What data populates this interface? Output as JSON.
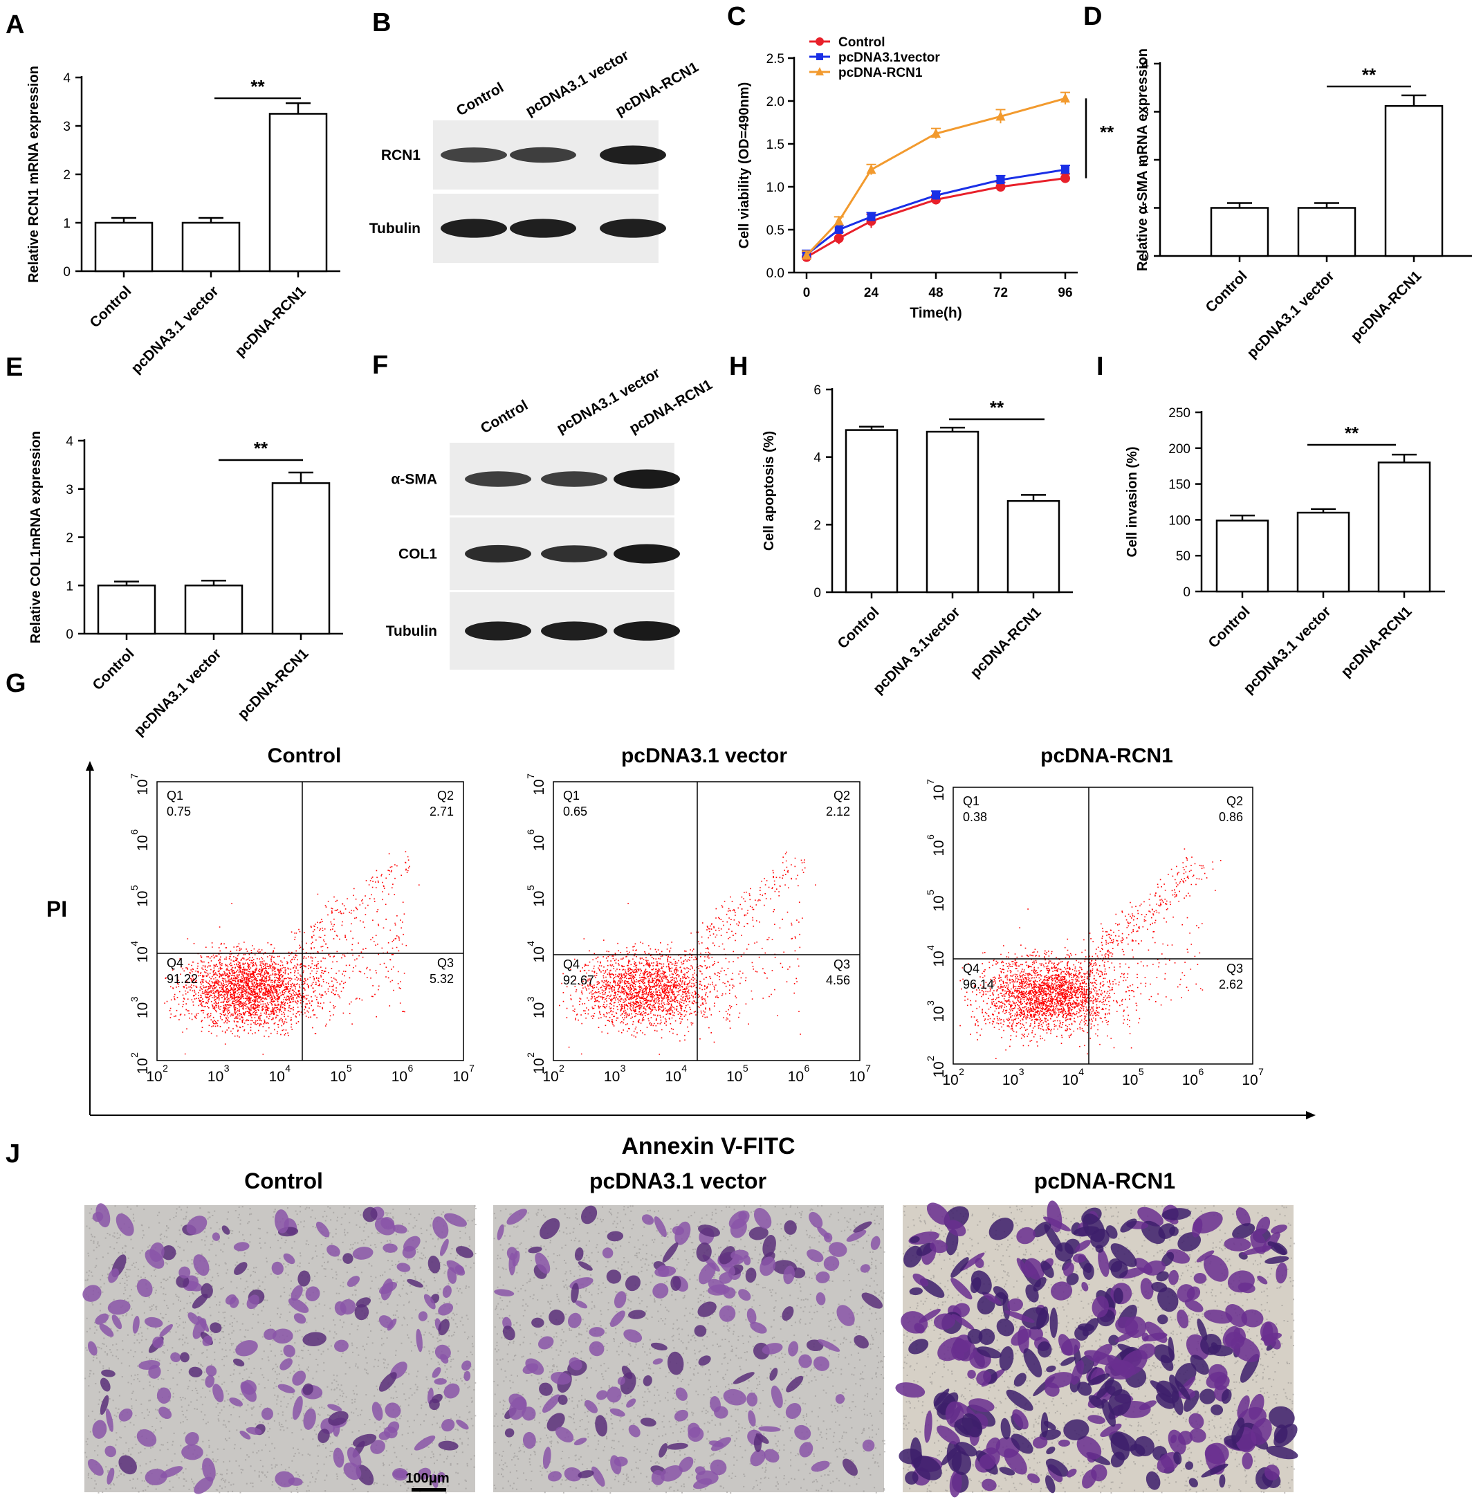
{
  "panel_labels": {
    "A": "A",
    "B": "B",
    "C": "C",
    "D": "D",
    "E": "E",
    "F": "F",
    "G": "G",
    "H": "H",
    "I": "I",
    "J": "J"
  },
  "colors": {
    "control": "#e8202a",
    "vector": "#1a2fe6",
    "rcn1": "#f29a2e",
    "dots": "#ff0000",
    "stain": "#7a3c9c",
    "background_field": "#c9c7c4"
  },
  "groups": [
    "Control",
    "pcDNA3.1 vector",
    "pcDNA-RCN1"
  ],
  "chart_data": [
    {
      "id": "A",
      "type": "bar",
      "categories": [
        "Control",
        "pcDNA3.1 vector",
        "pcDNA-RCN1"
      ],
      "values": [
        1.0,
        1.0,
        3.25
      ],
      "errors": [
        0.1,
        0.1,
        0.22
      ],
      "ylabel": "Relative RCN1 mRNA expression",
      "ylim": [
        0,
        4
      ],
      "yticks": [
        "0",
        "1",
        "2",
        "3",
        "4"
      ],
      "significance": "**"
    },
    {
      "id": "C",
      "type": "line",
      "x": [
        0,
        12,
        24,
        48,
        72,
        96
      ],
      "xticks": [
        "0",
        "24",
        "48",
        "72",
        "96"
      ],
      "xlabel": "Time(h)",
      "ylabel": "Cell viability (OD=490nm)",
      "ylim": [
        0,
        2.5
      ],
      "yticks": [
        "0.0",
        "0.5",
        "1.0",
        "1.5",
        "2.0",
        "2.5"
      ],
      "legend_position": "top-left",
      "significance": "**",
      "series": [
        {
          "name": "Control",
          "values": [
            0.18,
            0.4,
            0.6,
            0.85,
            1.0,
            1.1
          ],
          "errors": [
            0.05,
            0.07,
            0.08,
            0.05,
            0.05,
            0.05
          ]
        },
        {
          "name": "pcDNA3.1vector",
          "values": [
            0.21,
            0.5,
            0.65,
            0.9,
            1.08,
            1.2
          ],
          "errors": [
            0.05,
            0.05,
            0.05,
            0.05,
            0.05,
            0.05
          ]
        },
        {
          "name": "pcDNA-RCN1",
          "values": [
            0.2,
            0.6,
            1.2,
            1.62,
            1.82,
            2.03
          ],
          "errors": [
            0.05,
            0.05,
            0.06,
            0.06,
            0.08,
            0.07
          ]
        }
      ]
    },
    {
      "id": "D",
      "type": "bar",
      "categories": [
        "Control",
        "pcDNA3.1 vector",
        "pcDNA-RCN1"
      ],
      "values": [
        1.0,
        1.0,
        3.12
      ],
      "errors": [
        0.1,
        0.1,
        0.22
      ],
      "ylabel": "Relative α-SMA mRNA expression",
      "ylim": [
        0,
        4
      ],
      "yticks": [
        "0",
        "1",
        "2",
        "3",
        "4"
      ],
      "significance": "**"
    },
    {
      "id": "E",
      "type": "bar",
      "categories": [
        "Control",
        "pcDNA3.1 vector",
        "pcDNA-RCN1"
      ],
      "values": [
        1.0,
        1.0,
        3.12
      ],
      "errors": [
        0.08,
        0.1,
        0.22
      ],
      "ylabel": "Relative COL1mRNA expression",
      "ylim": [
        0,
        4
      ],
      "yticks": [
        "0",
        "1",
        "2",
        "3",
        "4"
      ],
      "significance": "**"
    },
    {
      "id": "H",
      "type": "bar",
      "categories": [
        "Control",
        "pcDNA 3.1vector",
        "pcDNA-RCN1"
      ],
      "values": [
        4.8,
        4.75,
        2.7
      ],
      "errors": [
        0.1,
        0.12,
        0.18
      ],
      "ylabel": "Cell apoptosis (%)",
      "ylim": [
        0,
        6
      ],
      "yticks": [
        "0",
        "2",
        "4",
        "6"
      ],
      "significance": "**"
    },
    {
      "id": "I",
      "type": "bar",
      "categories": [
        "Control",
        "pcDNA3.1 vector",
        "pcDNA-RCN1"
      ],
      "values": [
        99,
        110,
        180
      ],
      "errors": [
        7,
        5,
        11
      ],
      "ylabel": "Cell invasion (%)",
      "ylim": [
        0,
        250
      ],
      "yticks": [
        "0",
        "50",
        "100",
        "150",
        "200",
        "250"
      ],
      "significance": "**"
    },
    {
      "id": "G",
      "type": "scatter",
      "xlabel": "Annexin V-FITC",
      "ylabel": "PI",
      "xticks": [
        "10",
        "10",
        "10",
        "10",
        "10",
        "10"
      ],
      "tick_exponents": [
        "2",
        "3",
        "4",
        "5",
        "6",
        "7"
      ],
      "plots": [
        {
          "title": "Control",
          "quadrants": {
            "Q1": "0.75",
            "Q2": "2.71",
            "Q3": "5.32",
            "Q4": "91.22"
          }
        },
        {
          "title": "pcDNA3.1 vector",
          "quadrants": {
            "Q1": "0.65",
            "Q2": "2.12",
            "Q3": "4.56",
            "Q4": "92.67"
          }
        },
        {
          "title": "pcDNA-RCN1",
          "quadrants": {
            "Q1": "0.38",
            "Q2": "0.86",
            "Q3": "2.62",
            "Q4": "96.14"
          }
        }
      ]
    }
  ],
  "western_B": {
    "lanes": [
      "Control",
      "pcDNA3.1 vector",
      "pcDNA-RCN1"
    ],
    "rows": [
      {
        "label": "RCN1",
        "intensity": [
          0.55,
          0.6,
          0.95
        ]
      },
      {
        "label": "Tubulin",
        "intensity": [
          0.95,
          0.95,
          0.95
        ]
      }
    ]
  },
  "western_F": {
    "lanes": [
      "Control",
      "pcDNA3.1 vector",
      "pcDNA-RCN1"
    ],
    "rows": [
      {
        "label": "α-SMA",
        "intensity": [
          0.6,
          0.6,
          1.0
        ]
      },
      {
        "label": "COL1",
        "intensity": [
          0.8,
          0.75,
          1.0
        ]
      },
      {
        "label": "Tubulin",
        "intensity": [
          0.95,
          0.95,
          1.0
        ]
      }
    ]
  },
  "panel_J": {
    "titles": [
      "Control",
      "pcDNA3.1 vector",
      "pcDNA-RCN1"
    ],
    "density": [
      0.35,
      0.35,
      1.0
    ],
    "scale_bar": "100μm"
  }
}
